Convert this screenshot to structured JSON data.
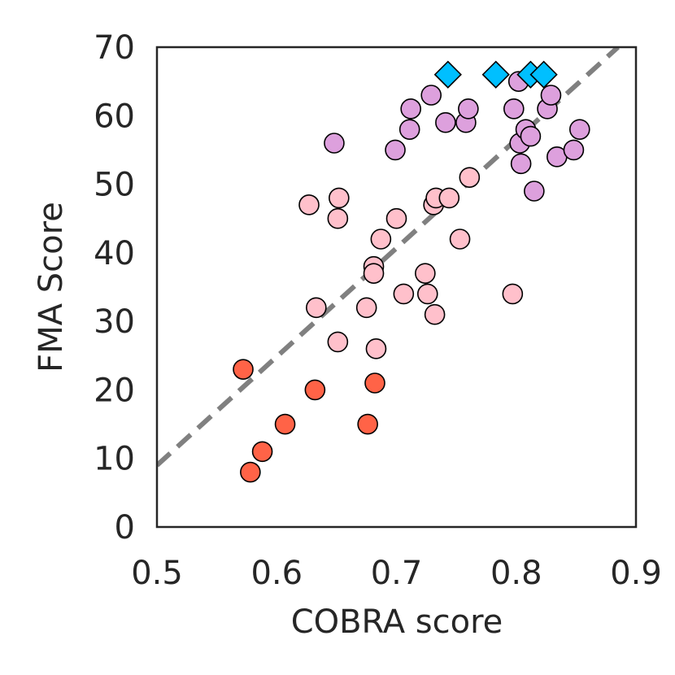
{
  "chart_data": {
    "type": "scatter",
    "title": "",
    "xlabel": "COBRA score",
    "ylabel": "FMA Score",
    "xlim": [
      0.5,
      0.9
    ],
    "ylim": [
      0,
      70
    ],
    "xticks": [
      "0.5",
      "0.6",
      "0.7",
      "0.8",
      "0.9"
    ],
    "yticks": [
      "0",
      "10",
      "20",
      "30",
      "40",
      "50",
      "60",
      "70"
    ],
    "grid": false,
    "legend": "none",
    "reference_line": {
      "style": "dashed",
      "color": "#808080",
      "points": [
        [
          0.5,
          9
        ],
        [
          0.885,
          70
        ]
      ]
    },
    "series": [
      {
        "marker": "circle",
        "color": "#ff6347",
        "points": [
          [
            0.572,
            23
          ],
          [
            0.578,
            8
          ],
          [
            0.588,
            11
          ],
          [
            0.607,
            15
          ],
          [
            0.632,
            20
          ],
          [
            0.676,
            15
          ],
          [
            0.682,
            21
          ]
        ]
      },
      {
        "marker": "circle",
        "color": "#ffc0cb",
        "points": [
          [
            0.627,
            47
          ],
          [
            0.652,
            48
          ],
          [
            0.651,
            45
          ],
          [
            0.633,
            32
          ],
          [
            0.651,
            27
          ],
          [
            0.675,
            32
          ],
          [
            0.681,
            38
          ],
          [
            0.681,
            37
          ],
          [
            0.687,
            42
          ],
          [
            0.7,
            45
          ],
          [
            0.683,
            26
          ],
          [
            0.706,
            34
          ],
          [
            0.724,
            37
          ],
          [
            0.726,
            34
          ],
          [
            0.732,
            31
          ],
          [
            0.731,
            47
          ],
          [
            0.733,
            48
          ],
          [
            0.744,
            48
          ],
          [
            0.753,
            42
          ],
          [
            0.761,
            51
          ],
          [
            0.797,
            34
          ]
        ]
      },
      {
        "marker": "circle",
        "color": "#dda0dd",
        "points": [
          [
            0.648,
            56
          ],
          [
            0.699,
            55
          ],
          [
            0.712,
            61
          ],
          [
            0.711,
            58
          ],
          [
            0.729,
            63
          ],
          [
            0.741,
            59
          ],
          [
            0.758,
            59
          ],
          [
            0.76,
            61
          ],
          [
            0.798,
            61
          ],
          [
            0.802,
            65
          ],
          [
            0.803,
            56
          ],
          [
            0.804,
            53
          ],
          [
            0.808,
            58
          ],
          [
            0.812,
            57
          ],
          [
            0.815,
            49
          ],
          [
            0.826,
            61
          ],
          [
            0.829,
            63
          ],
          [
            0.834,
            54
          ],
          [
            0.848,
            55
          ],
          [
            0.853,
            58
          ]
        ]
      },
      {
        "marker": "diamond",
        "color": "#00bfff",
        "points": [
          [
            0.743,
            66
          ],
          [
            0.783,
            66
          ],
          [
            0.812,
            66
          ],
          [
            0.823,
            66
          ]
        ]
      }
    ]
  }
}
